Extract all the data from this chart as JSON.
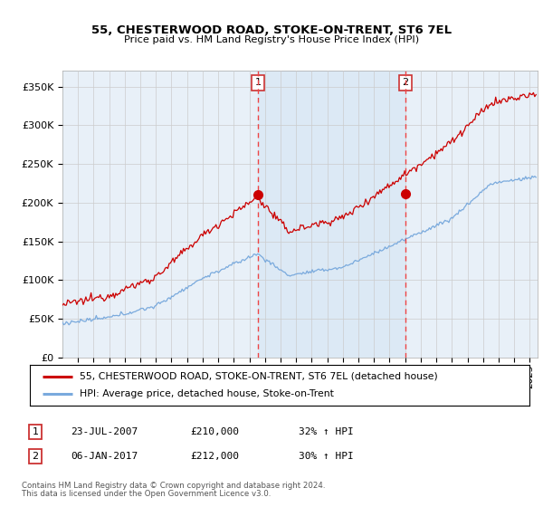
{
  "title": "55, CHESTERWOOD ROAD, STOKE-ON-TRENT, ST6 7EL",
  "subtitle": "Price paid vs. HM Land Registry's House Price Index (HPI)",
  "ylabel_ticks": [
    "£0",
    "£50K",
    "£100K",
    "£150K",
    "£200K",
    "£250K",
    "£300K",
    "£350K"
  ],
  "ytick_vals": [
    0,
    50000,
    100000,
    150000,
    200000,
    250000,
    300000,
    350000
  ],
  "ylim": [
    0,
    370000
  ],
  "xlim_start": 1995.0,
  "xlim_end": 2025.5,
  "transaction1": {
    "date_num": 2007.55,
    "price": 210000,
    "label": "1"
  },
  "transaction2": {
    "date_num": 2017.02,
    "price": 212000,
    "label": "2"
  },
  "legend_house": "55, CHESTERWOOD ROAD, STOKE-ON-TRENT, ST6 7EL (detached house)",
  "legend_hpi": "HPI: Average price, detached house, Stoke-on-Trent",
  "table_rows": [
    {
      "num": "1",
      "date": "23-JUL-2007",
      "price": "£210,000",
      "hpi": "32% ↑ HPI"
    },
    {
      "num": "2",
      "date": "06-JAN-2017",
      "price": "£212,000",
      "hpi": "30% ↑ HPI"
    }
  ],
  "footnote1": "Contains HM Land Registry data © Crown copyright and database right 2024.",
  "footnote2": "This data is licensed under the Open Government Licence v3.0.",
  "house_color": "#cc0000",
  "hpi_color": "#7aaadd",
  "bg_color": "#e8f0f8",
  "shade_color": "#dae8f5",
  "grid_color": "#cccccc",
  "dashed_color": "#ee4444",
  "box_edge_color": "#cc3333"
}
